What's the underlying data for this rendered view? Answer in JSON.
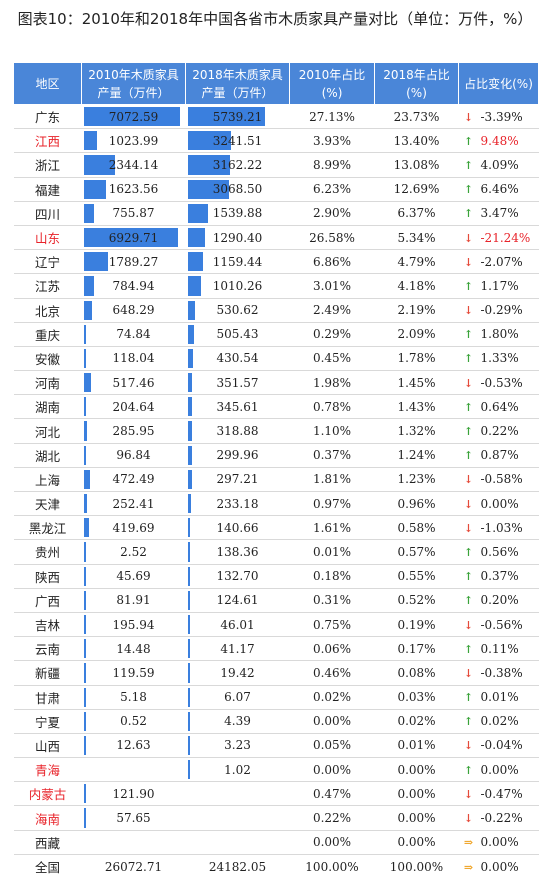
{
  "title": "图表10：2010年和2018年中国各省市木质家具产量对比（单位：万件，%）",
  "chart_data": {
    "type": "table",
    "title": "图表10：2010年和2018年中国各省市木质家具产量对比（单位：万件，%）",
    "columns": [
      "地区",
      "2010年木质家具产量（万件）",
      "2018年木质家具产量（万件）",
      "2010年占比(%)",
      "2018年占比(%)",
      "占比变化(%)"
    ],
    "bar_max": 7072.59,
    "rows": [
      {
        "region": "广东",
        "v2010": "7072.59",
        "v2018": "5739.21",
        "s2010": "27.13%",
        "s2018": "23.73%",
        "change": "-3.39%",
        "dir": "down",
        "red_region": false,
        "red_change": false
      },
      {
        "region": "江西",
        "v2010": "1023.99",
        "v2018": "3241.51",
        "s2010": "3.93%",
        "s2018": "13.40%",
        "change": "9.48%",
        "dir": "up",
        "red_region": true,
        "red_change": true
      },
      {
        "region": "浙江",
        "v2010": "2344.14",
        "v2018": "3162.22",
        "s2010": "8.99%",
        "s2018": "13.08%",
        "change": "4.09%",
        "dir": "up",
        "red_region": false,
        "red_change": false
      },
      {
        "region": "福建",
        "v2010": "1623.56",
        "v2018": "3068.50",
        "s2010": "6.23%",
        "s2018": "12.69%",
        "change": "6.46%",
        "dir": "up",
        "red_region": false,
        "red_change": false
      },
      {
        "region": "四川",
        "v2010": "755.87",
        "v2018": "1539.88",
        "s2010": "2.90%",
        "s2018": "6.37%",
        "change": "3.47%",
        "dir": "up",
        "red_region": false,
        "red_change": false
      },
      {
        "region": "山东",
        "v2010": "6929.71",
        "v2018": "1290.40",
        "s2010": "26.58%",
        "s2018": "5.34%",
        "change": "-21.24%",
        "dir": "down",
        "red_region": true,
        "red_change": true
      },
      {
        "region": "辽宁",
        "v2010": "1789.27",
        "v2018": "1159.44",
        "s2010": "6.86%",
        "s2018": "4.79%",
        "change": "-2.07%",
        "dir": "down",
        "red_region": false,
        "red_change": false
      },
      {
        "region": "江苏",
        "v2010": "784.94",
        "v2018": "1010.26",
        "s2010": "3.01%",
        "s2018": "4.18%",
        "change": "1.17%",
        "dir": "up",
        "red_region": false,
        "red_change": false
      },
      {
        "region": "北京",
        "v2010": "648.29",
        "v2018": "530.62",
        "s2010": "2.49%",
        "s2018": "2.19%",
        "change": "-0.29%",
        "dir": "down",
        "red_region": false,
        "red_change": false
      },
      {
        "region": "重庆",
        "v2010": "74.84",
        "v2018": "505.43",
        "s2010": "0.29%",
        "s2018": "2.09%",
        "change": "1.80%",
        "dir": "up",
        "red_region": false,
        "red_change": false
      },
      {
        "region": "安徽",
        "v2010": "118.04",
        "v2018": "430.54",
        "s2010": "0.45%",
        "s2018": "1.78%",
        "change": "1.33%",
        "dir": "up",
        "red_region": false,
        "red_change": false
      },
      {
        "region": "河南",
        "v2010": "517.46",
        "v2018": "351.57",
        "s2010": "1.98%",
        "s2018": "1.45%",
        "change": "-0.53%",
        "dir": "down",
        "red_region": false,
        "red_change": false
      },
      {
        "region": "湖南",
        "v2010": "204.64",
        "v2018": "345.61",
        "s2010": "0.78%",
        "s2018": "1.43%",
        "change": "0.64%",
        "dir": "up",
        "red_region": false,
        "red_change": false
      },
      {
        "region": "河北",
        "v2010": "285.95",
        "v2018": "318.88",
        "s2010": "1.10%",
        "s2018": "1.32%",
        "change": "0.22%",
        "dir": "up",
        "red_region": false,
        "red_change": false
      },
      {
        "region": "湖北",
        "v2010": "96.84",
        "v2018": "299.96",
        "s2010": "0.37%",
        "s2018": "1.24%",
        "change": "0.87%",
        "dir": "up",
        "red_region": false,
        "red_change": false
      },
      {
        "region": "上海",
        "v2010": "472.49",
        "v2018": "297.21",
        "s2010": "1.81%",
        "s2018": "1.23%",
        "change": "-0.58%",
        "dir": "down",
        "red_region": false,
        "red_change": false
      },
      {
        "region": "天津",
        "v2010": "252.41",
        "v2018": "233.18",
        "s2010": "0.97%",
        "s2018": "0.96%",
        "change": "0.00%",
        "dir": "down",
        "red_region": false,
        "red_change": false
      },
      {
        "region": "黑龙江",
        "v2010": "419.69",
        "v2018": "140.66",
        "s2010": "1.61%",
        "s2018": "0.58%",
        "change": "-1.03%",
        "dir": "down",
        "red_region": false,
        "red_change": false
      },
      {
        "region": "贵州",
        "v2010": "2.52",
        "v2018": "138.36",
        "s2010": "0.01%",
        "s2018": "0.57%",
        "change": "0.56%",
        "dir": "up",
        "red_region": false,
        "red_change": false
      },
      {
        "region": "陕西",
        "v2010": "45.69",
        "v2018": "132.70",
        "s2010": "0.18%",
        "s2018": "0.55%",
        "change": "0.37%",
        "dir": "up",
        "red_region": false,
        "red_change": false
      },
      {
        "region": "广西",
        "v2010": "81.91",
        "v2018": "124.61",
        "s2010": "0.31%",
        "s2018": "0.52%",
        "change": "0.20%",
        "dir": "up",
        "red_region": false,
        "red_change": false
      },
      {
        "region": "吉林",
        "v2010": "195.94",
        "v2018": "46.01",
        "s2010": "0.75%",
        "s2018": "0.19%",
        "change": "-0.56%",
        "dir": "down",
        "red_region": false,
        "red_change": false
      },
      {
        "region": "云南",
        "v2010": "14.48",
        "v2018": "41.17",
        "s2010": "0.06%",
        "s2018": "0.17%",
        "change": "0.11%",
        "dir": "up",
        "red_region": false,
        "red_change": false
      },
      {
        "region": "新疆",
        "v2010": "119.59",
        "v2018": "19.42",
        "s2010": "0.46%",
        "s2018": "0.08%",
        "change": "-0.38%",
        "dir": "down",
        "red_region": false,
        "red_change": false
      },
      {
        "region": "甘肃",
        "v2010": "5.18",
        "v2018": "6.07",
        "s2010": "0.02%",
        "s2018": "0.03%",
        "change": "0.01%",
        "dir": "up",
        "red_region": false,
        "red_change": false
      },
      {
        "region": "宁夏",
        "v2010": "0.52",
        "v2018": "4.39",
        "s2010": "0.00%",
        "s2018": "0.02%",
        "change": "0.02%",
        "dir": "up",
        "red_region": false,
        "red_change": false
      },
      {
        "region": "山西",
        "v2010": "12.63",
        "v2018": "3.23",
        "s2010": "0.05%",
        "s2018": "0.01%",
        "change": "-0.04%",
        "dir": "down",
        "red_region": false,
        "red_change": false
      },
      {
        "region": "青海",
        "v2010": "",
        "v2018": "1.02",
        "s2010": "0.00%",
        "s2018": "0.00%",
        "change": "0.00%",
        "dir": "up",
        "red_region": true,
        "red_change": false
      },
      {
        "region": "内蒙古",
        "v2010": "121.90",
        "v2018": "",
        "s2010": "0.47%",
        "s2018": "0.00%",
        "change": "-0.47%",
        "dir": "down",
        "red_region": true,
        "red_change": false
      },
      {
        "region": "海南",
        "v2010": "57.65",
        "v2018": "",
        "s2010": "0.22%",
        "s2018": "0.00%",
        "change": "-0.22%",
        "dir": "down",
        "red_region": true,
        "red_change": false
      },
      {
        "region": "西藏",
        "v2010": "",
        "v2018": "",
        "s2010": "0.00%",
        "s2018": "0.00%",
        "change": "0.00%",
        "dir": "flat",
        "red_region": false,
        "red_change": false
      },
      {
        "region": "全国",
        "v2010": "26072.71",
        "v2018": "24182.05",
        "s2010": "100.00%",
        "s2018": "100.00%",
        "change": "0.00%",
        "dir": "flat",
        "red_region": false,
        "red_change": false,
        "no_bar": true
      }
    ]
  },
  "colors": {
    "header_bg": "#4a86d8",
    "bar": "#3a7fde",
    "up": "#3aa33a",
    "down": "#e54b3b",
    "highlight": "#e8232a"
  },
  "icons": {
    "up": "up-arrow-icon",
    "down": "down-arrow-icon",
    "flat": "right-arrow-icon"
  }
}
